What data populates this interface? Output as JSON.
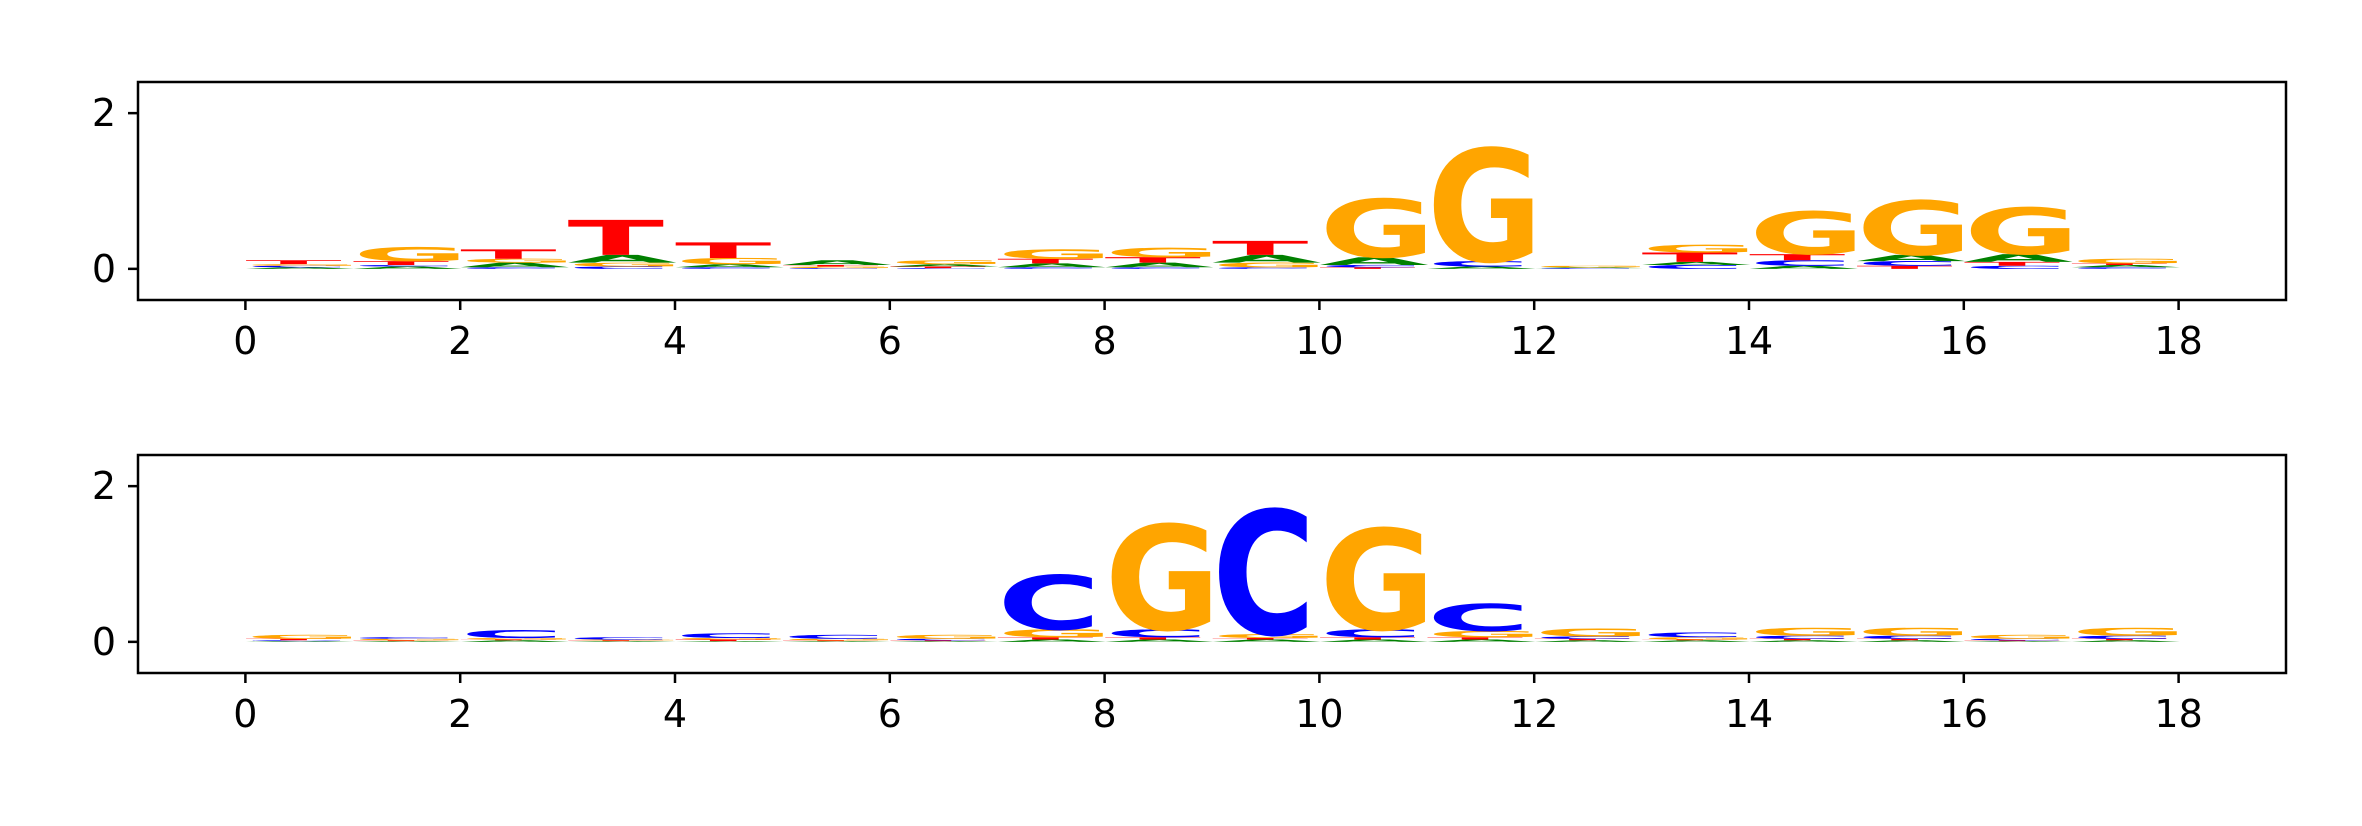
{
  "colors": {
    "A": "#008000",
    "C": "#0000ff",
    "G": "#ffa500",
    "T": "#ff0000"
  },
  "chart_data": [
    {
      "type": "sequence-logo",
      "title": "",
      "xlabel": "",
      "ylabel": "",
      "xlim": [
        -1,
        19
      ],
      "ylim": [
        -0.4,
        2.4
      ],
      "xticks": [
        0,
        2,
        4,
        6,
        8,
        10,
        12,
        14,
        16,
        18
      ],
      "yticks": [
        0,
        2
      ],
      "grid": false,
      "positions": [
        {
          "x": 0,
          "letters": [
            {
              "base": "A",
              "height": 0.02
            },
            {
              "base": "C",
              "height": 0.02
            },
            {
              "base": "G",
              "height": 0.02
            },
            {
              "base": "T",
              "height": 0.05
            }
          ]
        },
        {
          "x": 1,
          "letters": [
            {
              "base": "A",
              "height": 0.03
            },
            {
              "base": "C",
              "height": 0.02
            },
            {
              "base": "T",
              "height": 0.05
            },
            {
              "base": "G",
              "height": 0.18
            }
          ]
        },
        {
          "x": 2,
          "letters": [
            {
              "base": "C",
              "height": 0.02
            },
            {
              "base": "A",
              "height": 0.06
            },
            {
              "base": "G",
              "height": 0.05
            },
            {
              "base": "T",
              "height": 0.12
            }
          ]
        },
        {
          "x": 3,
          "letters": [
            {
              "base": "C",
              "height": 0.03
            },
            {
              "base": "G",
              "height": 0.05
            },
            {
              "base": "A",
              "height": 0.1
            },
            {
              "base": "T",
              "height": 0.45
            }
          ]
        },
        {
          "x": 4,
          "letters": [
            {
              "base": "C",
              "height": 0.02
            },
            {
              "base": "A",
              "height": 0.04
            },
            {
              "base": "G",
              "height": 0.08
            },
            {
              "base": "T",
              "height": 0.2
            }
          ]
        },
        {
          "x": 5,
          "letters": [
            {
              "base": "C",
              "height": 0.01
            },
            {
              "base": "G",
              "height": 0.02
            },
            {
              "base": "T",
              "height": 0.02
            },
            {
              "base": "A",
              "height": 0.06
            }
          ]
        },
        {
          "x": 6,
          "letters": [
            {
              "base": "C",
              "height": 0.01
            },
            {
              "base": "T",
              "height": 0.02
            },
            {
              "base": "A",
              "height": 0.03
            },
            {
              "base": "G",
              "height": 0.05
            }
          ]
        },
        {
          "x": 7,
          "letters": [
            {
              "base": "C",
              "height": 0.02
            },
            {
              "base": "A",
              "height": 0.05
            },
            {
              "base": "T",
              "height": 0.06
            },
            {
              "base": "G",
              "height": 0.12
            }
          ]
        },
        {
          "x": 8,
          "letters": [
            {
              "base": "C",
              "height": 0.02
            },
            {
              "base": "A",
              "height": 0.06
            },
            {
              "base": "T",
              "height": 0.07
            },
            {
              "base": "G",
              "height": 0.12
            }
          ]
        },
        {
          "x": 9,
          "letters": [
            {
              "base": "C",
              "height": 0.02
            },
            {
              "base": "G",
              "height": 0.06
            },
            {
              "base": "A",
              "height": 0.1
            },
            {
              "base": "T",
              "height": 0.18
            }
          ]
        },
        {
          "x": 10,
          "letters": [
            {
              "base": "T",
              "height": 0.02
            },
            {
              "base": "C",
              "height": 0.03
            },
            {
              "base": "A",
              "height": 0.1
            },
            {
              "base": "G",
              "height": 0.75
            }
          ]
        },
        {
          "x": 11,
          "letters": [
            {
              "base": "A",
              "height": 0.03
            },
            {
              "base": "C",
              "height": 0.07
            },
            {
              "base": "G",
              "height": 1.45
            }
          ]
        },
        {
          "x": 12,
          "letters": [
            {
              "base": "C",
              "height": 0.01
            },
            {
              "base": "A",
              "height": 0.01
            },
            {
              "base": "G",
              "height": 0.02
            }
          ]
        },
        {
          "x": 13,
          "letters": [
            {
              "base": "C",
              "height": 0.05
            },
            {
              "base": "A",
              "height": 0.04
            },
            {
              "base": "T",
              "height": 0.12
            },
            {
              "base": "G",
              "height": 0.1
            }
          ]
        },
        {
          "x": 14,
          "letters": [
            {
              "base": "A",
              "height": 0.04
            },
            {
              "base": "C",
              "height": 0.07
            },
            {
              "base": "T",
              "height": 0.08
            },
            {
              "base": "G",
              "height": 0.55
            }
          ]
        },
        {
          "x": 15,
          "letters": [
            {
              "base": "T",
              "height": 0.04
            },
            {
              "base": "C",
              "height": 0.06
            },
            {
              "base": "A",
              "height": 0.08
            },
            {
              "base": "G",
              "height": 0.7
            }
          ]
        },
        {
          "x": 16,
          "letters": [
            {
              "base": "C",
              "height": 0.04
            },
            {
              "base": "T",
              "height": 0.05
            },
            {
              "base": "A",
              "height": 0.1
            },
            {
              "base": "G",
              "height": 0.6
            }
          ]
        },
        {
          "x": 17,
          "letters": [
            {
              "base": "C",
              "height": 0.02
            },
            {
              "base": "A",
              "height": 0.03
            },
            {
              "base": "T",
              "height": 0.02
            },
            {
              "base": "G",
              "height": 0.06
            }
          ]
        }
      ]
    },
    {
      "type": "sequence-logo",
      "title": "",
      "xlabel": "",
      "ylabel": "",
      "xlim": [
        -1,
        19
      ],
      "ylim": [
        -0.4,
        2.4
      ],
      "xticks": [
        0,
        2,
        4,
        6,
        8,
        10,
        12,
        14,
        16,
        18
      ],
      "yticks": [
        0,
        2
      ],
      "grid": false,
      "positions": [
        {
          "x": 0,
          "letters": [
            {
              "base": "A",
              "height": 0.01
            },
            {
              "base": "C",
              "height": 0.01
            },
            {
              "base": "T",
              "height": 0.02
            },
            {
              "base": "G",
              "height": 0.05
            }
          ]
        },
        {
          "x": 1,
          "letters": [
            {
              "base": "A",
              "height": 0.01
            },
            {
              "base": "T",
              "height": 0.01
            },
            {
              "base": "G",
              "height": 0.02
            },
            {
              "base": "C",
              "height": 0.02
            }
          ]
        },
        {
          "x": 2,
          "letters": [
            {
              "base": "A",
              "height": 0.02
            },
            {
              "base": "T",
              "height": 0.01
            },
            {
              "base": "G",
              "height": 0.02
            },
            {
              "base": "C",
              "height": 0.1
            }
          ]
        },
        {
          "x": 3,
          "letters": [
            {
              "base": "A",
              "height": 0.01
            },
            {
              "base": "T",
              "height": 0.01
            },
            {
              "base": "G",
              "height": 0.01
            },
            {
              "base": "C",
              "height": 0.03
            }
          ]
        },
        {
          "x": 4,
          "letters": [
            {
              "base": "A",
              "height": 0.01
            },
            {
              "base": "T",
              "height": 0.02
            },
            {
              "base": "G",
              "height": 0.02
            },
            {
              "base": "C",
              "height": 0.06
            }
          ]
        },
        {
          "x": 5,
          "letters": [
            {
              "base": "A",
              "height": 0.01
            },
            {
              "base": "T",
              "height": 0.01
            },
            {
              "base": "G",
              "height": 0.02
            },
            {
              "base": "C",
              "height": 0.05
            }
          ]
        },
        {
          "x": 6,
          "letters": [
            {
              "base": "A",
              "height": 0.01
            },
            {
              "base": "T",
              "height": 0.01
            },
            {
              "base": "C",
              "height": 0.02
            },
            {
              "base": "G",
              "height": 0.05
            }
          ]
        },
        {
          "x": 7,
          "letters": [
            {
              "base": "A",
              "height": 0.03
            },
            {
              "base": "T",
              "height": 0.03
            },
            {
              "base": "G",
              "height": 0.1
            },
            {
              "base": "C",
              "height": 0.7
            }
          ]
        },
        {
          "x": 8,
          "letters": [
            {
              "base": "A",
              "height": 0.03
            },
            {
              "base": "T",
              "height": 0.03
            },
            {
              "base": "C",
              "height": 0.1
            },
            {
              "base": "G",
              "height": 1.35
            }
          ]
        },
        {
          "x": 9,
          "letters": [
            {
              "base": "A",
              "height": 0.03
            },
            {
              "base": "T",
              "height": 0.02
            },
            {
              "base": "G",
              "height": 0.05
            },
            {
              "base": "C",
              "height": 1.6
            }
          ]
        },
        {
          "x": 10,
          "letters": [
            {
              "base": "A",
              "height": 0.03
            },
            {
              "base": "T",
              "height": 0.03
            },
            {
              "base": "C",
              "height": 0.1
            },
            {
              "base": "G",
              "height": 1.3
            }
          ]
        },
        {
          "x": 11,
          "letters": [
            {
              "base": "A",
              "height": 0.03
            },
            {
              "base": "T",
              "height": 0.03
            },
            {
              "base": "G",
              "height": 0.08
            },
            {
              "base": "C",
              "height": 0.35
            }
          ]
        },
        {
          "x": 12,
          "letters": [
            {
              "base": "A",
              "height": 0.02
            },
            {
              "base": "T",
              "height": 0.02
            },
            {
              "base": "C",
              "height": 0.03
            },
            {
              "base": "G",
              "height": 0.1
            }
          ]
        },
        {
          "x": 13,
          "letters": [
            {
              "base": "A",
              "height": 0.02
            },
            {
              "base": "T",
              "height": 0.01
            },
            {
              "base": "G",
              "height": 0.03
            },
            {
              "base": "C",
              "height": 0.06
            }
          ]
        },
        {
          "x": 14,
          "letters": [
            {
              "base": "A",
              "height": 0.02
            },
            {
              "base": "T",
              "height": 0.02
            },
            {
              "base": "C",
              "height": 0.04
            },
            {
              "base": "G",
              "height": 0.1
            }
          ]
        },
        {
          "x": 15,
          "letters": [
            {
              "base": "A",
              "height": 0.02
            },
            {
              "base": "T",
              "height": 0.02
            },
            {
              "base": "C",
              "height": 0.04
            },
            {
              "base": "G",
              "height": 0.1
            }
          ]
        },
        {
          "x": 16,
          "letters": [
            {
              "base": "A",
              "height": 0.01
            },
            {
              "base": "T",
              "height": 0.01
            },
            {
              "base": "C",
              "height": 0.02
            },
            {
              "base": "G",
              "height": 0.05
            }
          ]
        },
        {
          "x": 17,
          "letters": [
            {
              "base": "A",
              "height": 0.02
            },
            {
              "base": "T",
              "height": 0.02
            },
            {
              "base": "C",
              "height": 0.04
            },
            {
              "base": "G",
              "height": 0.1
            }
          ]
        }
      ]
    }
  ]
}
